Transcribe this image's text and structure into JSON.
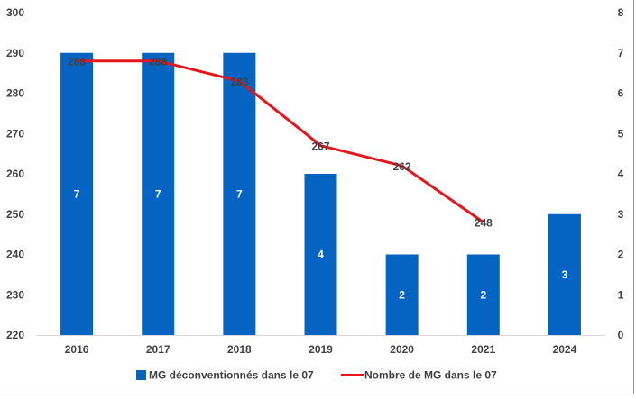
{
  "chart_data": {
    "type": "bar",
    "categories": [
      "2016",
      "2017",
      "2018",
      "2019",
      "2020",
      "2021",
      "2024"
    ],
    "left_axis": {
      "min": 220,
      "max": 300,
      "step": 10
    },
    "right_axis": {
      "min": 0,
      "max": 8,
      "step": 1
    },
    "series": [
      {
        "name": "MG déconventionnés dans le 07",
        "type": "bar",
        "axis": "right",
        "color": "#0563C1",
        "values": [
          7,
          7,
          7,
          4,
          2,
          2,
          3
        ],
        "labels": [
          "7",
          "7",
          "7",
          "4",
          "2",
          "2",
          "3"
        ]
      },
      {
        "name": "Nombre de MG dans le 07",
        "type": "line",
        "axis": "left",
        "color": "#E8141B",
        "values": [
          288,
          288,
          283,
          267,
          262,
          248,
          null
        ],
        "labels": [
          "288",
          "288",
          "283",
          "267",
          "262",
          "248",
          null
        ]
      }
    ],
    "legend_position": "bottom",
    "grid": false
  }
}
